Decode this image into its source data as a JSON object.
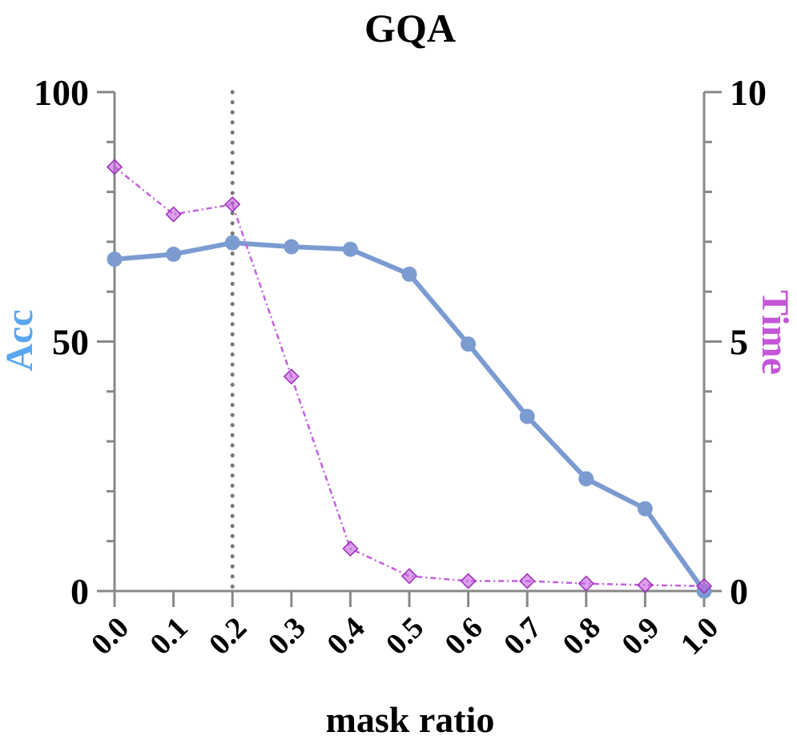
{
  "chart_data": {
    "type": "line",
    "title": "GQA",
    "xlabel": "mask ratio",
    "ylabel_left": "Acc",
    "ylabel_right": "Time",
    "x": [
      0.0,
      0.1,
      0.2,
      0.3,
      0.4,
      0.5,
      0.6,
      0.7,
      0.8,
      0.9,
      1.0
    ],
    "x_tick_labels": [
      "0.0",
      "0.1",
      "0.2",
      "0.3",
      "0.4",
      "0.5",
      "0.6",
      "0.7",
      "0.8",
      "0.9",
      "1.0"
    ],
    "xlim": [
      0.0,
      1.0
    ],
    "ylim_left": [
      0,
      100
    ],
    "ylim_right": [
      0,
      10
    ],
    "y_left_ticks": [
      0,
      50,
      100
    ],
    "y_right_ticks": [
      0,
      5,
      10
    ],
    "reference_line_x": 0.2,
    "series": [
      {
        "axis": "left",
        "color": "#7b9bd1",
        "marker": "circle",
        "values": [
          66.5,
          67.5,
          69.8,
          69.0,
          68.5,
          63.5,
          49.5,
          35.0,
          22.5,
          16.5,
          0.0
        ]
      },
      {
        "axis": "right",
        "color": "#c45fe0",
        "marker": "diamond",
        "values": [
          8.5,
          7.55,
          7.75,
          4.3,
          0.85,
          0.3,
          0.2,
          0.2,
          0.15,
          0.12,
          0.1
        ]
      }
    ],
    "colors": {
      "left_axis_label": "#5aa6f0",
      "right_axis_label": "#c456d8",
      "axes": "#888888",
      "reference_line": "#777777"
    }
  }
}
